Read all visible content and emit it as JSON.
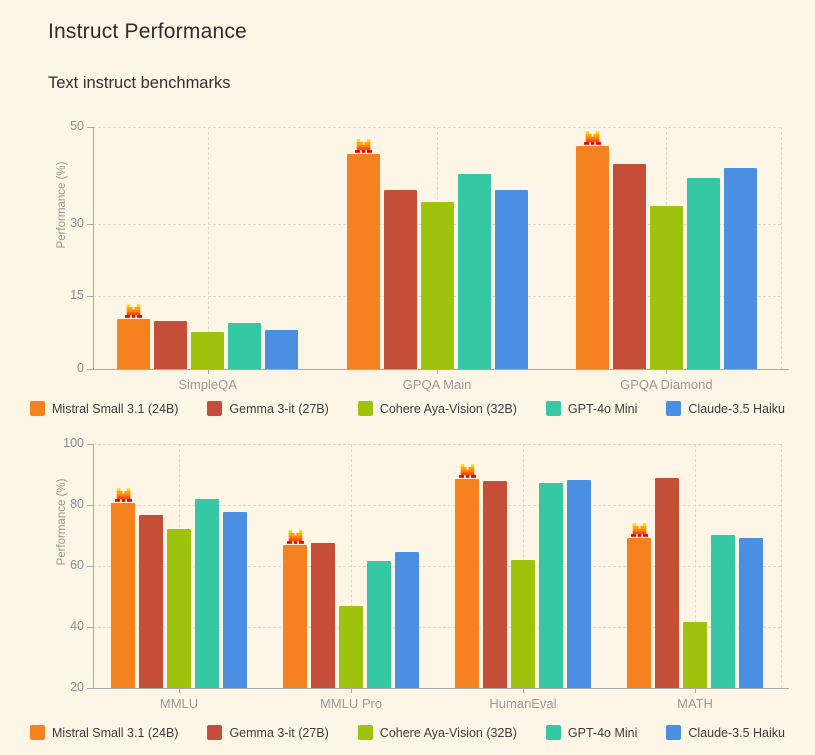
{
  "header": {
    "title": "Instruct Performance",
    "subtitle": "Text instruct benchmarks"
  },
  "palette": {
    "background": "#FDF6E7",
    "axis_line": "#A8A8A8",
    "gridline": "#E0DBC9",
    "mistral_logo": [
      "#FFD800",
      "#FFA300",
      "#FF8205",
      "#FA500F",
      "#E10500"
    ]
  },
  "legend": {
    "items": [
      {
        "label": "Mistral Small 3.1 (24B)",
        "color": "#F5821F"
      },
      {
        "label": "Gemma 3-it (27B)",
        "color": "#C44E38"
      },
      {
        "label": "Cohere Aya-Vision (32B)",
        "color": "#9DC30D"
      },
      {
        "label": "GPT-4o Mini",
        "color": "#36C8A5"
      },
      {
        "label": "Claude-3.5 Haiku",
        "color": "#4A8FE2"
      }
    ]
  },
  "chart_data": [
    {
      "type": "bar",
      "title": "Text instruct benchmarks (part 1)",
      "xlabel": "",
      "ylabel": "Performance (%)",
      "categories": [
        "SimpleQA",
        "GPQA Main",
        "GPQA Diamond"
      ],
      "ylim": [
        0,
        50
      ],
      "yticks": [
        0,
        15,
        30,
        50
      ],
      "grid": true,
      "legend_position": "bottom",
      "marker": {
        "icon": "mistral-m-logo",
        "series_index": 0,
        "on_every_category": true
      },
      "series": [
        {
          "name": "Mistral Small 3.1 (24B)",
          "color": "#F5821F",
          "values": [
            10.4,
            44.4,
            46.0
          ]
        },
        {
          "name": "Gemma 3-it (27B)",
          "color": "#C44E38",
          "values": [
            10.0,
            36.9,
            42.4
          ]
        },
        {
          "name": "Cohere Aya-Vision (32B)",
          "color": "#9DC30D",
          "values": [
            7.7,
            34.5,
            33.6
          ]
        },
        {
          "name": "GPT-4o Mini",
          "color": "#36C8A5",
          "values": [
            9.5,
            40.2,
            39.4
          ]
        },
        {
          "name": "Claude-3.5 Haiku",
          "color": "#4A8FE2",
          "values": [
            8.0,
            37.0,
            41.5
          ]
        }
      ]
    },
    {
      "type": "bar",
      "title": "Text instruct benchmarks (part 2)",
      "xlabel": "",
      "ylabel": "Performance (%)",
      "categories": [
        "MMLU",
        "MMLU Pro",
        "HumanEval",
        "MATH"
      ],
      "ylim": [
        20,
        100
      ],
      "yticks": [
        20,
        40,
        60,
        80,
        100
      ],
      "grid": true,
      "legend_position": "bottom",
      "marker": {
        "icon": "mistral-m-logo",
        "series_index": 0,
        "on_every_category": true
      },
      "series": [
        {
          "name": "Mistral Small 3.1 (24B)",
          "color": "#F5821F",
          "values": [
            80.6,
            66.8,
            88.4,
            69.3
          ]
        },
        {
          "name": "Gemma 3-it (27B)",
          "color": "#C44E38",
          "values": [
            76.8,
            67.5,
            87.8,
            89.0
          ]
        },
        {
          "name": "Cohere Aya-Vision (32B)",
          "color": "#9DC30D",
          "values": [
            72.1,
            47.0,
            62.1,
            41.7
          ]
        },
        {
          "name": "GPT-4o Mini",
          "color": "#36C8A5",
          "values": [
            82.0,
            61.7,
            87.2,
            70.2
          ]
        },
        {
          "name": "Claude-3.5 Haiku",
          "color": "#4A8FE2",
          "values": [
            77.6,
            64.7,
            88.1,
            69.2
          ]
        }
      ]
    }
  ]
}
